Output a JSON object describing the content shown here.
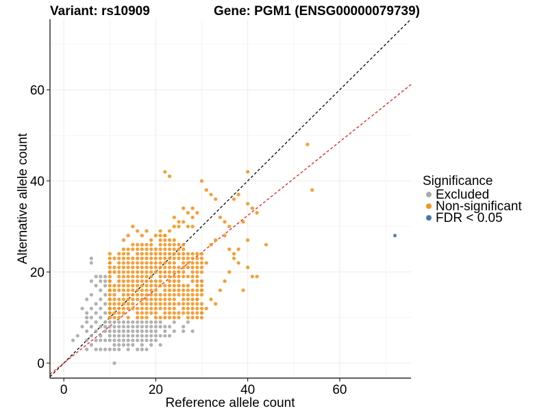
{
  "chart_data": {
    "type": "scatter",
    "title_left": "Variant: rs10909",
    "title_right": "Gene: PGM1 (ENSG00000079739)",
    "xlabel": "Reference allele count",
    "ylabel": "Alternative allele count",
    "xlim": [
      -3,
      75.5
    ],
    "ylim": [
      -3.3,
      75.5
    ],
    "x_ticks": [
      0,
      20,
      40,
      60
    ],
    "y_ticks": [
      0,
      20,
      40,
      60
    ],
    "grid": true,
    "reference_lines": [
      {
        "name": "identity",
        "slope": 1.0,
        "intercept": 0,
        "color": "#000000",
        "style": "dashed"
      },
      {
        "name": "regression",
        "slope": 0.81,
        "intercept": 0,
        "color": "#e41a1c",
        "style": "dashed"
      }
    ],
    "legend": {
      "title": "Significance",
      "position": "right",
      "entries": [
        {
          "label": "Excluded",
          "color": "#a9a9a9"
        },
        {
          "label": "Non-significant",
          "color": "#f7941d"
        },
        {
          "label": "FDR < 0.05",
          "color": "#4677a8"
        }
      ]
    },
    "series": [
      {
        "name": "Excluded",
        "color": "#a9a9a9",
        "points": [
          [
            2,
            5
          ],
          [
            3,
            6
          ],
          [
            4,
            12
          ],
          [
            4,
            8
          ],
          [
            5,
            3
          ],
          [
            5,
            5
          ],
          [
            5,
            7
          ],
          [
            5,
            9
          ],
          [
            5,
            10
          ],
          [
            5,
            11
          ],
          [
            5,
            14
          ],
          [
            6,
            4
          ],
          [
            6,
            6
          ],
          [
            6,
            8
          ],
          [
            6,
            10
          ],
          [
            6,
            12
          ],
          [
            6,
            15
          ],
          [
            6,
            18
          ],
          [
            6,
            22
          ],
          [
            6,
            23
          ],
          [
            7,
            3
          ],
          [
            7,
            5
          ],
          [
            7,
            7
          ],
          [
            7,
            9
          ],
          [
            7,
            11
          ],
          [
            7,
            13
          ],
          [
            7,
            17
          ],
          [
            7,
            19
          ],
          [
            8,
            3
          ],
          [
            8,
            5
          ],
          [
            8,
            6
          ],
          [
            8,
            8
          ],
          [
            8,
            10
          ],
          [
            8,
            12
          ],
          [
            8,
            14
          ],
          [
            8,
            16
          ],
          [
            8,
            18
          ],
          [
            8,
            19
          ],
          [
            9,
            3
          ],
          [
            9,
            5
          ],
          [
            9,
            7
          ],
          [
            9,
            8
          ],
          [
            9,
            9
          ],
          [
            9,
            11
          ],
          [
            9,
            13
          ],
          [
            9,
            15
          ],
          [
            9,
            17
          ],
          [
            9,
            18
          ],
          [
            9,
            19
          ],
          [
            10,
            3
          ],
          [
            10,
            5
          ],
          [
            10,
            6
          ],
          [
            10,
            7
          ],
          [
            10,
            8
          ],
          [
            10,
            9
          ],
          [
            10,
            10
          ],
          [
            10,
            11
          ],
          [
            10,
            12
          ],
          [
            11,
            3
          ],
          [
            11,
            4
          ],
          [
            11,
            5
          ],
          [
            11,
            6
          ],
          [
            11,
            7
          ],
          [
            11,
            8
          ],
          [
            11,
            9
          ],
          [
            11,
            0
          ],
          [
            12,
            3
          ],
          [
            12,
            4
          ],
          [
            12,
            5
          ],
          [
            12,
            6
          ],
          [
            12,
            7
          ],
          [
            12,
            8
          ],
          [
            12,
            9
          ],
          [
            13,
            4
          ],
          [
            13,
            5
          ],
          [
            13,
            6
          ],
          [
            13,
            7
          ],
          [
            13,
            8
          ],
          [
            13,
            9
          ],
          [
            14,
            3
          ],
          [
            14,
            4
          ],
          [
            14,
            5
          ],
          [
            14,
            6
          ],
          [
            14,
            7
          ],
          [
            14,
            8
          ],
          [
            14,
            9
          ],
          [
            15,
            4
          ],
          [
            15,
            5
          ],
          [
            15,
            6
          ],
          [
            15,
            7
          ],
          [
            15,
            8
          ],
          [
            15,
            9
          ],
          [
            16,
            3
          ],
          [
            16,
            5
          ],
          [
            16,
            6
          ],
          [
            16,
            7
          ],
          [
            16,
            8
          ],
          [
            16,
            9
          ],
          [
            17,
            3
          ],
          [
            17,
            4
          ],
          [
            17,
            5
          ],
          [
            17,
            6
          ],
          [
            17,
            7
          ],
          [
            17,
            8
          ],
          [
            17,
            9
          ],
          [
            18,
            3
          ],
          [
            18,
            5
          ],
          [
            18,
            6
          ],
          [
            18,
            7
          ],
          [
            18,
            8
          ],
          [
            18,
            9
          ],
          [
            19,
            4
          ],
          [
            19,
            5
          ],
          [
            19,
            6
          ],
          [
            19,
            7
          ],
          [
            19,
            8
          ],
          [
            19,
            9
          ],
          [
            20,
            5
          ],
          [
            20,
            6
          ],
          [
            20,
            7
          ],
          [
            20,
            8
          ],
          [
            20,
            9
          ],
          [
            21,
            4
          ],
          [
            21,
            6
          ],
          [
            21,
            8
          ],
          [
            21,
            9
          ],
          [
            22,
            6
          ],
          [
            22,
            7
          ],
          [
            22,
            8
          ],
          [
            23,
            6
          ],
          [
            23,
            8
          ],
          [
            24,
            7
          ],
          [
            24,
            9
          ],
          [
            26,
            7
          ],
          [
            26,
            8
          ],
          [
            27,
            9
          ],
          [
            28,
            7
          ]
        ]
      },
      {
        "name": "Non-significant",
        "color": "#f7941d",
        "points": [
          [
            10,
            10
          ],
          [
            10,
            12
          ],
          [
            10,
            14
          ],
          [
            10,
            16
          ],
          [
            10,
            18
          ],
          [
            10,
            20
          ],
          [
            10,
            22
          ],
          [
            10,
            24
          ],
          [
            22,
            42
          ],
          [
            23,
            41
          ],
          [
            28,
            34
          ],
          [
            29,
            33
          ],
          [
            30,
            40
          ],
          [
            31,
            38
          ],
          [
            32,
            37
          ],
          [
            33,
            36
          ],
          [
            34,
            32
          ],
          [
            35,
            31
          ],
          [
            36,
            30
          ],
          [
            37,
            36
          ],
          [
            38,
            37
          ],
          [
            39,
            31
          ],
          [
            40,
            42
          ],
          [
            40,
            35
          ],
          [
            41,
            34
          ],
          [
            42,
            33
          ],
          [
            44,
            26
          ],
          [
            53,
            48
          ],
          [
            54,
            38
          ],
          [
            36,
            25
          ],
          [
            37,
            24
          ],
          [
            38,
            22
          ],
          [
            39,
            16
          ],
          [
            40,
            21
          ],
          [
            41,
            19
          ],
          [
            42,
            19
          ],
          [
            40,
            27
          ],
          [
            35,
            28
          ],
          [
            33,
            27
          ],
          [
            32,
            26
          ],
          [
            31,
            22
          ],
          [
            30,
            18
          ],
          [
            30,
            16
          ],
          [
            29,
            14
          ],
          [
            30,
            11
          ],
          [
            31,
            12
          ],
          [
            32,
            14
          ],
          [
            33,
            13
          ],
          [
            34,
            16
          ],
          [
            35,
            18
          ],
          [
            36,
            20
          ],
          [
            37,
            23
          ],
          [
            38,
            25
          ]
        ]
      },
      {
        "name": "FDR < 0.05",
        "color": "#4677a8",
        "points": [
          [
            72,
            28
          ]
        ]
      }
    ]
  }
}
